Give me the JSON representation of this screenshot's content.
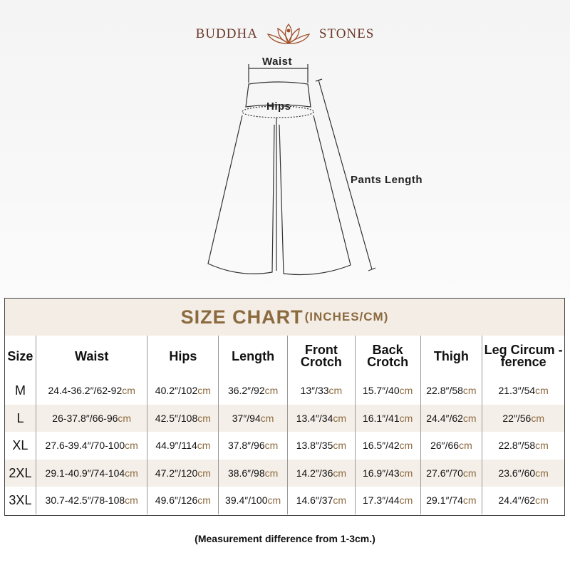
{
  "logo": {
    "left": "BUDDHA",
    "right": "STONES",
    "icon": "lotus-meditation-icon"
  },
  "diagram": {
    "waist": "Waist",
    "hips": "Hips",
    "length": "Pants Length"
  },
  "chart": {
    "title": "SIZE CHART",
    "title_units": "(INCHES/CM)",
    "headers": [
      "Size",
      "Waist",
      "Hips",
      "Length",
      "Front Crotch",
      "Back Crotch",
      "Thigh",
      "Leg Circum -ference"
    ],
    "unit": "cm",
    "rows": [
      {
        "size": "M",
        "values": [
          "24.4-36.2″/62-92",
          "40.2″/102",
          "36.2″/92",
          "13″/33",
          "15.7″/40",
          "22.8″/58",
          "21.3″/54"
        ]
      },
      {
        "size": "L",
        "values": [
          "26-37.8″/66-96",
          "42.5″/108",
          "37″/94",
          "13.4″/34",
          "16.1″/41",
          "24.4″/62",
          "22″/56"
        ]
      },
      {
        "size": "XL",
        "values": [
          "27.6-39.4″/70-100",
          "44.9″/114",
          "37.8″/96",
          "13.8″/35",
          "16.5″/42",
          "26″/66",
          "22.8″/58"
        ]
      },
      {
        "size": "2XL",
        "values": [
          "29.1-40.9″/74-104",
          "47.2″/120",
          "38.6″/98",
          "14.2″/36",
          "16.9″/43",
          "27.6″/70",
          "23.6″/60"
        ]
      },
      {
        "size": "3XL",
        "values": [
          "30.7-42.5″/78-108",
          "49.6″/126",
          "39.4″/100",
          "14.6″/37",
          "17.3″/44",
          "29.1″/74",
          "24.4″/62"
        ]
      }
    ]
  },
  "note": "(Measurement difference from 1-3cm.)",
  "colors": {
    "accent": "#8b6a3e",
    "logo": "#6b3a2a",
    "band": "#f3ede6"
  }
}
